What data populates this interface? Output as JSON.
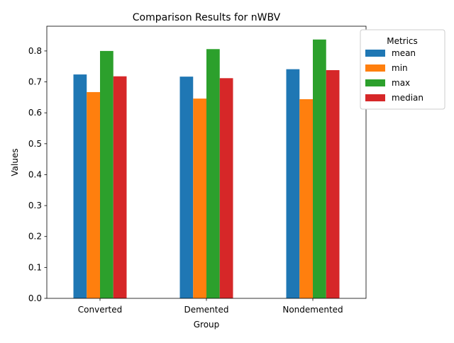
{
  "chart_data": {
    "type": "bar",
    "title": "Comparison Results for nWBV",
    "xlabel": "Group",
    "ylabel": "Values",
    "categories": [
      "Converted",
      "Demented",
      "Nondemented"
    ],
    "ylim": [
      0,
      0.88
    ],
    "yticks": [
      "0.0",
      "0.1",
      "0.2",
      "0.3",
      "0.4",
      "0.5",
      "0.6",
      "0.7",
      "0.8"
    ],
    "grid": false,
    "legend": {
      "title": "Metrics",
      "placement": "outside-top-right"
    },
    "series": [
      {
        "name": "mean",
        "color": "#1f77b4",
        "values": [
          0.724,
          0.717,
          0.741
        ]
      },
      {
        "name": "min",
        "color": "#ff7f0e",
        "values": [
          0.667,
          0.646,
          0.644
        ]
      },
      {
        "name": "max",
        "color": "#2ca02c",
        "values": [
          0.8,
          0.806,
          0.837
        ]
      },
      {
        "name": "median",
        "color": "#d62728",
        "values": [
          0.718,
          0.712,
          0.738
        ]
      }
    ]
  }
}
